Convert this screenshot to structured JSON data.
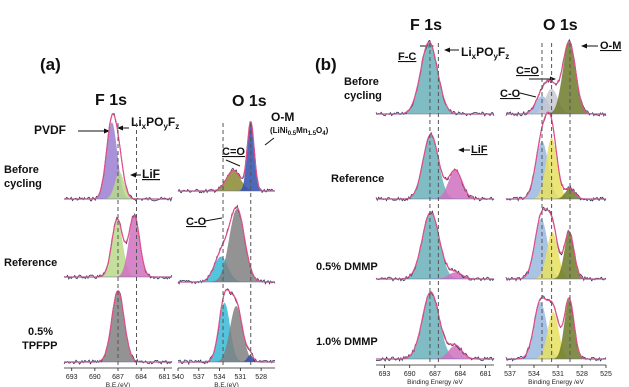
{
  "panel_a": {
    "tag": "(a)",
    "f1s_title": "F 1s",
    "o1s_title": "O 1s",
    "row_labels": [
      "Before",
      "cycling",
      "Reference",
      "0.5%",
      "TPFPP"
    ],
    "ann": {
      "pvdf": "PVDF",
      "lixpoyfz_main": "Li",
      "lixpoyfz_x": "x",
      "lixpoyfz_po": "PO",
      "lixpoyfz_y": "y",
      "lixpoyfz_f": "F",
      "lixpoyfz_z": "z",
      "lif": "LiF",
      "co": "C=O",
      "c_o": "C-O",
      "om": "O-M",
      "om_comp_pre": "(LiNi",
      "om_comp_ni": "0.5",
      "om_comp_mn": "Mn",
      "om_comp_mn_sub": "1.5",
      "om_comp_o": "O",
      "om_comp_o_sub": "4",
      "om_comp_post": ")"
    },
    "f_ticks": [
      "693",
      "690",
      "687",
      "684",
      "681"
    ],
    "o_ticks": [
      "540",
      "537",
      "534",
      "531",
      "528"
    ],
    "f_xlabel": "B.E.(eV)",
    "o_xlabel": "B.E.(eV)"
  },
  "panel_b": {
    "tag": "(b)",
    "f1s_title": "F 1s",
    "o1s_title": "O 1s",
    "row_labels": [
      "Before",
      "cycling",
      "Reference",
      "0.5% DMMP",
      "1.0% DMMP"
    ],
    "ann": {
      "fc": "F-C",
      "lixpoyfz_main": "Li",
      "lixpoyfz_x": "x",
      "lixpoyfz_po": "PO",
      "lixpoyfz_y": "y",
      "lixpoyfz_f": "F",
      "lixpoyfz_z": "z",
      "lif": "LiF",
      "co": "C=O",
      "c_o": "C-O",
      "om": "O-M"
    },
    "f_ticks": [
      "693",
      "690",
      "687",
      "684",
      "681"
    ],
    "o_ticks": [
      "537",
      "534",
      "531",
      "528",
      "525"
    ],
    "f_xlabel": "Binding Energy /eV",
    "o_xlabel": "Binding Energy /eV"
  },
  "colors": {
    "envelope": "#e0508a",
    "data": "#333355",
    "pvdf": "#9a7fd0",
    "lixpo": "#b8d98a",
    "lif": "#d070c0",
    "co": "#8a8a30",
    "om_blue": "#2d4fb0",
    "c_o": "#35b8d8",
    "gray": "#808080",
    "fc": "#6ab0b8",
    "olive": "#6d7a2a",
    "yellow": "#e8e060"
  },
  "chart_data": [
    {
      "type": "area",
      "panel": "a",
      "spectrum": "F 1s",
      "xlabel": "B.E.(eV)",
      "xlim": [
        694,
        680
      ],
      "reference_lines": [
        687.0,
        684.6
      ],
      "rows": [
        {
          "label": "Before cycling",
          "peaks": [
            {
              "name": "PVDF",
              "center": 687.8,
              "height": 1.0,
              "width": 0.7
            },
            {
              "name": "LixPOyFz",
              "center": 686.8,
              "height": 0.35,
              "width": 0.6
            }
          ]
        },
        {
          "label": "Reference",
          "peaks": [
            {
              "name": "LixPOyFz",
              "center": 687.1,
              "height": 0.85,
              "width": 0.7
            },
            {
              "name": "LiF",
              "center": 684.9,
              "height": 0.9,
              "width": 0.7
            }
          ]
        },
        {
          "label": "0.5% TPFPP",
          "peaks": [
            {
              "name": "LixPOyFz",
              "center": 687.0,
              "height": 0.95,
              "width": 0.8
            }
          ]
        }
      ]
    },
    {
      "type": "area",
      "panel": "a",
      "spectrum": "O 1s",
      "xlabel": "B.E.(eV)",
      "xlim": [
        540,
        526
      ],
      "reference_lines": [
        533.5,
        529.5
      ],
      "rows": [
        {
          "label": "Before cycling",
          "peaks": [
            {
              "name": "C=O",
              "center": 532.0,
              "height": 0.3,
              "width": 1.0
            },
            {
              "name": "O-M",
              "center": 529.5,
              "height": 1.0,
              "width": 0.5
            }
          ]
        },
        {
          "label": "Reference",
          "peaks": [
            {
              "name": "C-O",
              "center": 533.8,
              "height": 0.35,
              "width": 1.0
            },
            {
              "name": "C=O",
              "center": 531.5,
              "height": 1.0,
              "width": 1.1
            }
          ]
        },
        {
          "label": "0.5% TPFPP",
          "peaks": [
            {
              "name": "C-O",
              "center": 533.3,
              "height": 0.85,
              "width": 0.8
            },
            {
              "name": "C=O",
              "center": 531.6,
              "height": 0.8,
              "width": 0.9
            },
            {
              "name": "O-M",
              "center": 529.6,
              "height": 0.1,
              "width": 0.4
            }
          ]
        }
      ]
    },
    {
      "type": "area",
      "panel": "b",
      "spectrum": "F 1s",
      "xlabel": "Binding Energy /eV",
      "xlim": [
        694,
        680
      ],
      "reference_lines": [
        687.6,
        686.6
      ],
      "rows": [
        {
          "label": "Before cycling",
          "peaks": [
            {
              "name": "F-C",
              "center": 687.7,
              "height": 1.0,
              "width": 1.0
            }
          ]
        },
        {
          "label": "Reference",
          "peaks": [
            {
              "name": "LixPOyFz",
              "center": 687.5,
              "height": 0.9,
              "width": 0.9
            },
            {
              "name": "LiF",
              "center": 684.6,
              "height": 0.4,
              "width": 0.8
            }
          ]
        },
        {
          "label": "0.5% DMMP",
          "peaks": [
            {
              "name": "LixPOyFz",
              "center": 687.5,
              "height": 1.0,
              "width": 1.0
            },
            {
              "name": "LiF",
              "center": 684.6,
              "height": 0.1,
              "width": 0.8
            }
          ]
        },
        {
          "label": "1.0% DMMP",
          "peaks": [
            {
              "name": "LixPOyFz",
              "center": 687.5,
              "height": 1.0,
              "width": 1.0
            },
            {
              "name": "LiF",
              "center": 684.6,
              "height": 0.2,
              "width": 0.8
            }
          ]
        }
      ]
    },
    {
      "type": "area",
      "panel": "b",
      "spectrum": "O 1s",
      "xlabel": "Binding Energy /eV",
      "xlim": [
        537.5,
        525
      ],
      "reference_lines": [
        533.0,
        531.8,
        529.5
      ],
      "rows": [
        {
          "label": "Before cycling",
          "peaks": [
            {
              "name": "C-O",
              "center": 533.0,
              "height": 0.25,
              "width": 0.8
            },
            {
              "name": "C=O",
              "center": 531.8,
              "height": 0.35,
              "width": 0.8
            },
            {
              "name": "O-M",
              "center": 529.6,
              "height": 1.0,
              "width": 0.8
            }
          ]
        },
        {
          "label": "Reference",
          "peaks": [
            {
              "name": "C-O",
              "center": 533.0,
              "height": 0.8,
              "width": 0.8
            },
            {
              "name": "C=O",
              "center": 531.8,
              "height": 0.85,
              "width": 0.7
            },
            {
              "name": "O-M",
              "center": 529.5,
              "height": 0.15,
              "width": 0.6
            }
          ]
        },
        {
          "label": "0.5% DMMP",
          "peaks": [
            {
              "name": "C-O",
              "center": 533.1,
              "height": 0.9,
              "width": 0.8
            },
            {
              "name": "C=O",
              "center": 531.7,
              "height": 0.7,
              "width": 0.7
            },
            {
              "name": "O-M",
              "center": 529.6,
              "height": 0.7,
              "width": 0.6
            }
          ]
        },
        {
          "label": "1.0% DMMP",
          "peaks": [
            {
              "name": "C-O",
              "center": 533.2,
              "height": 0.85,
              "width": 0.8
            },
            {
              "name": "C=O",
              "center": 531.6,
              "height": 0.7,
              "width": 0.7
            },
            {
              "name": "O-M",
              "center": 529.6,
              "height": 0.9,
              "width": 0.6
            }
          ]
        }
      ]
    }
  ]
}
